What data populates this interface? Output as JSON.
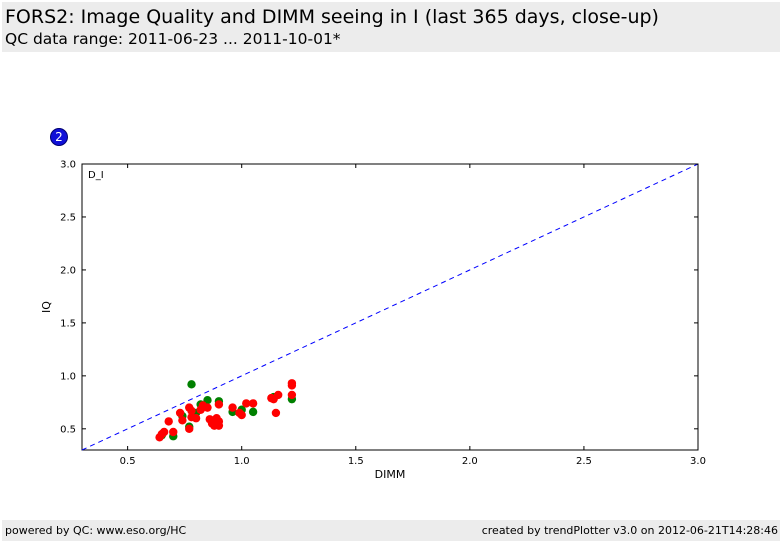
{
  "header": {
    "title": "FORS2: Image Quality and DIMM seeing in I (last 365 days, close-up)",
    "subtitle": "QC data range: 2011-06-23 ... 2011-10-01*"
  },
  "badge": {
    "label": "2"
  },
  "footer": {
    "left": "powered by QC: www.eso.org/HC",
    "right": "created by trendPlotter v3.0 on 2012-06-21T14:28:46"
  },
  "chart_data": {
    "type": "scatter",
    "xlabel": "DIMM",
    "ylabel": "IQ",
    "panel_label": "D_I",
    "xlim": [
      0.3,
      3.0
    ],
    "ylim": [
      0.3,
      3.0
    ],
    "xticks": [
      "0.5",
      "1.0",
      "1.5",
      "2.0",
      "2.5",
      "3.0"
    ],
    "yticks": [
      "0.5",
      "1.0",
      "1.5",
      "2.0",
      "2.5",
      "3.0"
    ],
    "reference_line": {
      "style": "dashed",
      "color": "#0000ff",
      "from": [
        0.3,
        0.3
      ],
      "to": [
        3.0,
        3.0
      ]
    },
    "series": [
      {
        "color": "#008000",
        "points": [
          [
            0.78,
            0.92
          ],
          [
            0.7,
            0.43
          ],
          [
            0.74,
            0.62
          ],
          [
            0.82,
            0.73
          ],
          [
            0.85,
            0.77
          ],
          [
            0.8,
            0.65
          ],
          [
            0.9,
            0.76
          ],
          [
            0.96,
            0.66
          ],
          [
            1.0,
            0.68
          ],
          [
            1.05,
            0.66
          ],
          [
            1.22,
            0.78
          ],
          [
            1.14,
            0.8
          ],
          [
            0.77,
            0.52
          ],
          [
            0.65,
            0.44
          ]
        ]
      },
      {
        "color": "#ff0000",
        "points": [
          [
            0.64,
            0.42
          ],
          [
            0.65,
            0.45
          ],
          [
            0.66,
            0.47
          ],
          [
            0.68,
            0.57
          ],
          [
            0.7,
            0.47
          ],
          [
            0.73,
            0.65
          ],
          [
            0.74,
            0.58
          ],
          [
            0.77,
            0.7
          ],
          [
            0.77,
            0.5
          ],
          [
            0.78,
            0.61
          ],
          [
            0.78,
            0.67
          ],
          [
            0.8,
            0.6
          ],
          [
            0.82,
            0.68
          ],
          [
            0.83,
            0.72
          ],
          [
            0.85,
            0.7
          ],
          [
            0.86,
            0.59
          ],
          [
            0.87,
            0.55
          ],
          [
            0.88,
            0.53
          ],
          [
            0.89,
            0.6
          ],
          [
            0.9,
            0.57
          ],
          [
            0.9,
            0.53
          ],
          [
            0.9,
            0.73
          ],
          [
            0.96,
            0.7
          ],
          [
            0.99,
            0.65
          ],
          [
            1.0,
            0.63
          ],
          [
            1.02,
            0.74
          ],
          [
            1.05,
            0.74
          ],
          [
            1.13,
            0.79
          ],
          [
            1.14,
            0.78
          ],
          [
            1.15,
            0.65
          ],
          [
            1.16,
            0.82
          ],
          [
            1.22,
            0.82
          ],
          [
            1.22,
            0.93
          ],
          [
            1.22,
            0.91
          ]
        ]
      }
    ]
  }
}
